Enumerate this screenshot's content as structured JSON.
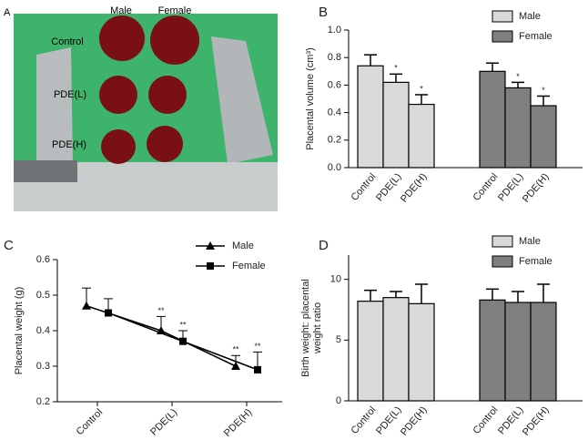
{
  "photo": {
    "panel": "A",
    "labels": {
      "male": "Male",
      "female": "Female",
      "control": "Control",
      "pde_l": "PDE(L)",
      "pde_h": "PDE(H)"
    }
  },
  "chart_data": [
    {
      "type": "bar",
      "panel": "B",
      "ylabel": "Placental volume (cm³)",
      "categories": [
        "Control",
        "PDE(L)",
        "PDE(H)"
      ],
      "series": [
        {
          "name": "Male",
          "color": "#d9d9d9",
          "values": [
            0.74,
            0.62,
            0.46
          ],
          "errors": [
            0.08,
            0.06,
            0.07
          ],
          "significance": [
            null,
            "*",
            "*"
          ]
        },
        {
          "name": "Female",
          "color": "#7f7f7f",
          "values": [
            0.7,
            0.58,
            0.45
          ],
          "errors": [
            0.06,
            0.04,
            0.07
          ],
          "significance": [
            null,
            "*",
            "*"
          ]
        }
      ],
      "ylim": [
        0,
        1
      ],
      "yticks": [
        {
          "value": 0,
          "label": "0.0"
        },
        0.2,
        0.4,
        0.6,
        0.8,
        {
          "value": 1,
          "label": "1.0"
        }
      ],
      "legend": "upper right"
    },
    {
      "type": "line",
      "panel": "C",
      "ylabel": "Placental weight (g)",
      "categories": [
        "Control",
        "PDE(L)",
        "PDE(H)"
      ],
      "series": [
        {
          "name": "Male",
          "color": "#000000",
          "marker": "triangle",
          "values": [
            0.47,
            0.4,
            0.3
          ],
          "errors": [
            0.05,
            0.04,
            0.03
          ],
          "significance": [
            null,
            "**",
            "**"
          ]
        },
        {
          "name": "Female",
          "color": "#000000",
          "marker": "square",
          "values": [
            0.45,
            0.37,
            0.29
          ],
          "errors": [
            0.04,
            0.03,
            0.05
          ],
          "significance": [
            null,
            "**",
            "**"
          ]
        }
      ],
      "ylim": [
        0.2,
        0.6
      ],
      "yticks": [
        0.2,
        0.3,
        0.4,
        0.5,
        0.6
      ],
      "legend": "upper right"
    },
    {
      "type": "bar",
      "panel": "D",
      "ylabel": [
        "Birth weight: placental",
        "weight ratio"
      ],
      "categories": [
        "Control",
        "PDE(L)",
        "PDE(H)"
      ],
      "series": [
        {
          "name": "Male",
          "color": "#d9d9d9",
          "values": [
            8.2,
            8.5,
            8.0
          ],
          "errors": [
            0.9,
            0.5,
            1.6
          ]
        },
        {
          "name": "Female",
          "color": "#7f7f7f",
          "values": [
            8.3,
            8.1,
            8.1
          ],
          "errors": [
            0.9,
            0.9,
            1.5
          ]
        }
      ],
      "ylim": [
        0,
        12
      ],
      "yticks": [
        0,
        5,
        10
      ],
      "legend": "upper right"
    }
  ]
}
